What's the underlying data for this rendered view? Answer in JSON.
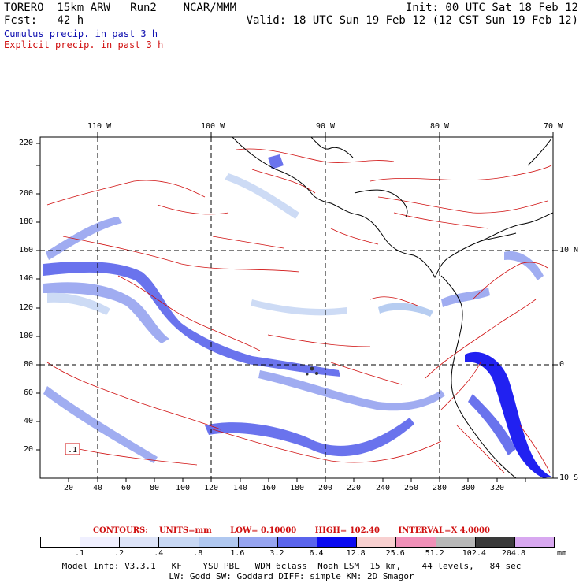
{
  "header": {
    "model_name": "TORERO  15km ARW   Run2    NCAR/MMM",
    "init": "Init: 00 UTC Sat 18 Feb 12",
    "fcst_label": "Fcst:   42 h",
    "valid": "Valid: 18 UTC Sun 19 Feb 12 (12 CST Sun 19 Feb 12)",
    "cumulus": "Cumulus precip. in past 3 h",
    "explicit": "Explicit precip. in past 3 h"
  },
  "axes": {
    "lon_labels": [
      "110 W",
      "100 W",
      "90 W",
      "80 W",
      "70 W"
    ],
    "lat_labels": [
      "10 N",
      "0",
      "10 S"
    ],
    "x_ticks": [
      "20",
      "40",
      "60",
      "80",
      "100",
      "120",
      "140",
      "160",
      "180",
      "200",
      "220",
      "240",
      "260",
      "280",
      "300",
      "320"
    ],
    "y_ticks": [
      "20",
      "40",
      "60",
      "80",
      "100",
      "120",
      "140",
      "160",
      "180",
      "200",
      "220"
    ],
    "box_label": ".1"
  },
  "contours": {
    "title": "CONTOURS:",
    "units": "UNITS=mm",
    "low": "LOW= 0.10000",
    "high": "HIGH=   102.40",
    "interval": "INTERVAL=X  4.0000"
  },
  "colorbar": {
    "labels": [
      ".1",
      ".2",
      ".4",
      ".8",
      "1.6",
      "3.2",
      "6.4",
      "12.8",
      "25.6",
      "51.2",
      "102.4",
      "204.8"
    ],
    "colors": [
      "#ffffff",
      "#f0f0ff",
      "#dde4f8",
      "#c8d8f4",
      "#b0c8f0",
      "#96a4f0",
      "#5a64ec",
      "#0a0af0",
      "#f8d0d0",
      "#f090b8",
      "#b8b8b8",
      "#3a3a3a",
      "#d8a8f0"
    ],
    "units": "mm"
  },
  "footer": {
    "line1": "Model Info: V3.3.1   KF    YSU PBL   WDM 6class  Noah LSM  15 km,    44 levels,   84 sec",
    "line2": "LW: Godd SW: Goddard DIFF: simple KM: 2D Smagor"
  }
}
